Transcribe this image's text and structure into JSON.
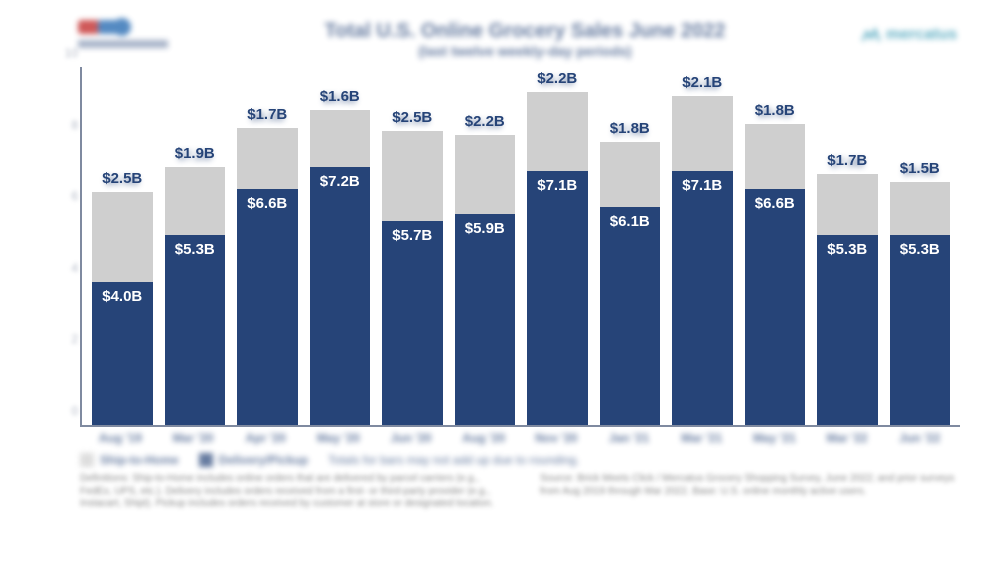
{
  "chart": {
    "type": "stacked-bar",
    "title": "Total U.S. Online Grocery Sales June 2022",
    "subtitle": "(last twelve weekly-day periods)",
    "title_color": "#264478",
    "title_fontsize": 20,
    "subtitle_fontsize": 14,
    "background_color": "#ffffff",
    "axis_color": "#7f8aa0",
    "y_axis": {
      "min": 0,
      "max": 10,
      "ticks": [
        0,
        2,
        4,
        6,
        8,
        10
      ],
      "tick_suffix": "",
      "label_fontsize": 12
    },
    "bar_width_ratio": 0.9,
    "segments": [
      {
        "key": "pickup_delivery",
        "name": "Pickup/Delivery",
        "color": "#264478",
        "label_color": "#ffffff"
      },
      {
        "key": "ship_to_home",
        "name": "Ship-to-Home",
        "color": "#cfcfcf",
        "label_color": "#264478"
      }
    ],
    "value_label_fontsize": 15,
    "value_label_weight": 700,
    "value_prefix": "$",
    "value_suffix": "B",
    "total_label_color": "#264478",
    "x_label_fontsize": 12,
    "x_label_color": "#264478",
    "data": [
      {
        "period": "Aug '19",
        "pickup_delivery": 4.0,
        "ship_to_home": 2.5,
        "total": 6.5
      },
      {
        "period": "Mar '20",
        "pickup_delivery": 5.3,
        "ship_to_home": 1.9,
        "total": 7.2
      },
      {
        "period": "Apr '20",
        "pickup_delivery": 6.6,
        "ship_to_home": 1.7,
        "total": 8.3
      },
      {
        "period": "May '20",
        "pickup_delivery": 7.2,
        "ship_to_home": 1.6,
        "total": 8.8
      },
      {
        "period": "Jun '20",
        "pickup_delivery": 5.7,
        "ship_to_home": 2.5,
        "total": 8.2
      },
      {
        "period": "Aug '20",
        "pickup_delivery": 5.9,
        "ship_to_home": 2.2,
        "total": 8.1
      },
      {
        "period": "Nov '20",
        "pickup_delivery": 7.1,
        "ship_to_home": 2.2,
        "total": 9.3
      },
      {
        "period": "Jan '21",
        "pickup_delivery": 6.1,
        "ship_to_home": 1.8,
        "total": 7.9
      },
      {
        "period": "Mar '21",
        "pickup_delivery": 7.1,
        "ship_to_home": 2.1,
        "total": 9.2
      },
      {
        "period": "May '21",
        "pickup_delivery": 6.6,
        "ship_to_home": 1.8,
        "total": 8.4
      },
      {
        "period": "Mar '22",
        "pickup_delivery": 5.3,
        "ship_to_home": 1.7,
        "total": 7.0
      },
      {
        "period": "Jun '22",
        "pickup_delivery": 5.3,
        "ship_to_home": 1.5,
        "total": 6.8
      }
    ],
    "legend": {
      "items": [
        {
          "label": "Ship-to-Home",
          "color": "#cfcfcf"
        },
        {
          "label": "Delivery/Pickup",
          "color": "#264478"
        }
      ],
      "note": "Totals for bars may not add up due to rounding.",
      "fontsize": 12,
      "color": "#264478"
    },
    "footnotes": {
      "left": "Definitions: Ship-to-Home includes online orders that are delivered by parcel carriers (e.g., FedEx, UPS, etc.). Delivery includes orders received from a first- or third-party provider (e.g., Instacart, Shipt). Pickup includes orders received by customer at store or designated location.",
      "right": "Source: Brick Meets Click / Mercatus Grocery Shopping Survey, June 2022; and prior surveys from Aug 2019 through Mar 2022. Base: U.S. online monthly active users.",
      "fontsize": 10,
      "color": "#555555"
    }
  },
  "logos": {
    "left": {
      "name": "Brick Meets Click",
      "accent1": "#c32f2f",
      "accent2": "#2a6db3"
    },
    "right": {
      "name": "mercatus",
      "color": "#3a9bb5"
    }
  }
}
